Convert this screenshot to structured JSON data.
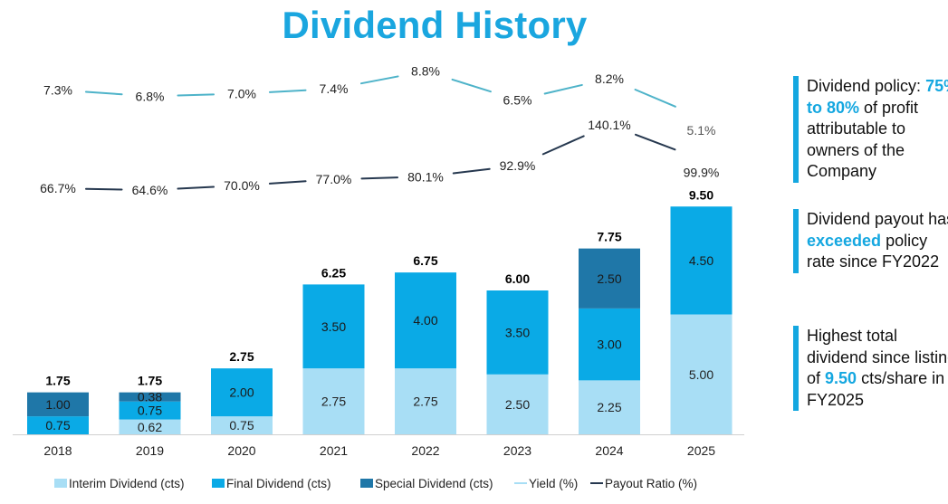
{
  "title": "Dividend History",
  "colors": {
    "interim": "#a8def5",
    "final": "#0aaae6",
    "special": "#1f77a8",
    "yield": "#4eb3c9",
    "payout": "#26384f",
    "accent": "#14a7e0"
  },
  "chart_data": {
    "type": "bar",
    "stacked": true,
    "categories": [
      "2018",
      "2019",
      "2020",
      "2021",
      "2022",
      "2023",
      "2024",
      "2025"
    ],
    "series": [
      {
        "name": "Interim Dividend (cts)",
        "values": [
          0,
          0.62,
          0.75,
          2.75,
          2.75,
          2.5,
          2.25,
          5.0
        ],
        "labels": [
          "",
          "0.62",
          "0.75",
          "2.75",
          "2.75",
          "2.50",
          "2.25",
          "5.00"
        ]
      },
      {
        "name": "Final Dividend (cts)",
        "values": [
          0.75,
          0.75,
          2.0,
          3.5,
          4.0,
          3.5,
          3.0,
          4.5
        ],
        "labels": [
          "0.75",
          "0.75",
          "2.00",
          "3.50",
          "4.00",
          "3.50",
          "3.00",
          "4.50"
        ]
      },
      {
        "name": "Special Dividend (cts)",
        "values": [
          1.0,
          0.38,
          0,
          0,
          0,
          0,
          2.5,
          0
        ],
        "labels": [
          "1.00",
          "0.38",
          "",
          "",
          "",
          "",
          "2.50",
          ""
        ]
      }
    ],
    "totals": [
      "1.75",
      "1.75",
      "2.75",
      "6.25",
      "6.75",
      "6.00",
      "7.75",
      "9.50"
    ],
    "lines": [
      {
        "name": "Yield (%)",
        "values": [
          7.3,
          6.8,
          7.0,
          7.4,
          8.8,
          6.5,
          8.2,
          5.1
        ],
        "labels": [
          "7.3%",
          "6.8%",
          "7.0%",
          "7.4%",
          "8.8%",
          "6.5%",
          "8.2%",
          "5.1%"
        ]
      },
      {
        "name": "Payout Ratio (%)",
        "values": [
          66.7,
          64.6,
          70.0,
          77.0,
          80.1,
          92.9,
          140.1,
          99.9
        ],
        "labels": [
          "66.7%",
          "64.6%",
          "70.0%",
          "77.0%",
          "80.1%",
          "92.9%",
          "140.1%",
          "99.9%"
        ]
      }
    ],
    "legend_position": "bottom",
    "grid": false
  },
  "notes": [
    {
      "pre": "Dividend policy: ",
      "highlight": "75% to 80%",
      "post": " of profit attributable to owners of the Company"
    },
    {
      "pre": "Dividend payout has ",
      "highlight": "exceeded",
      "post": " policy rate since FY2022"
    },
    {
      "pre": "Highest total dividend since listing of ",
      "highlight": "9.50",
      "post": " cts/share in FY2025"
    }
  ]
}
